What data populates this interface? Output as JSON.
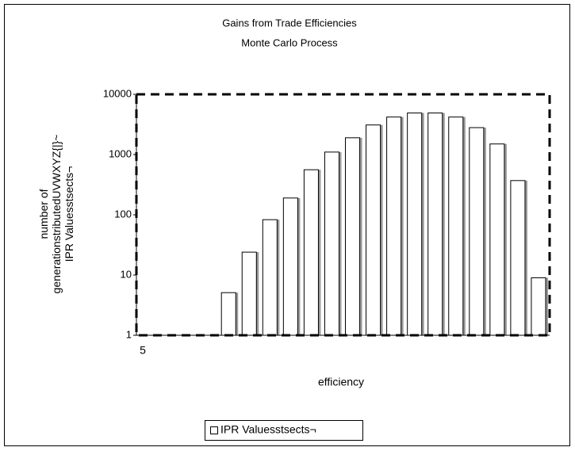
{
  "chart_data": {
    "type": "bar",
    "title": "Gains from Trade Efficiencies",
    "subtitle": "Monte Carlo Process",
    "ylabel": [
      "number of",
      "generationstributedUVWXYZ{|}~",
      "IPR Valuesstsects¬"
    ],
    "xlabel": "efficiency",
    "categories": [
      "5",
      null,
      null,
      null,
      null,
      null,
      null,
      null,
      null,
      null,
      null,
      null,
      null,
      null,
      null,
      null,
      null,
      null,
      null,
      null
    ],
    "series": [
      {
        "name": "IPR Valuesstsects¬",
        "color": "#ffffff",
        "values": [
          1,
          1,
          1,
          1,
          5.1,
          24,
          83,
          190,
          560,
          1100,
          1900,
          3100,
          4200,
          4900,
          4900,
          4200,
          2800,
          1500,
          370,
          9
        ]
      }
    ],
    "ylim": [
      1,
      10000
    ],
    "yticks": [
      1,
      10,
      100,
      1000,
      10000
    ],
    "log_scale": true,
    "legend": "bottom"
  }
}
